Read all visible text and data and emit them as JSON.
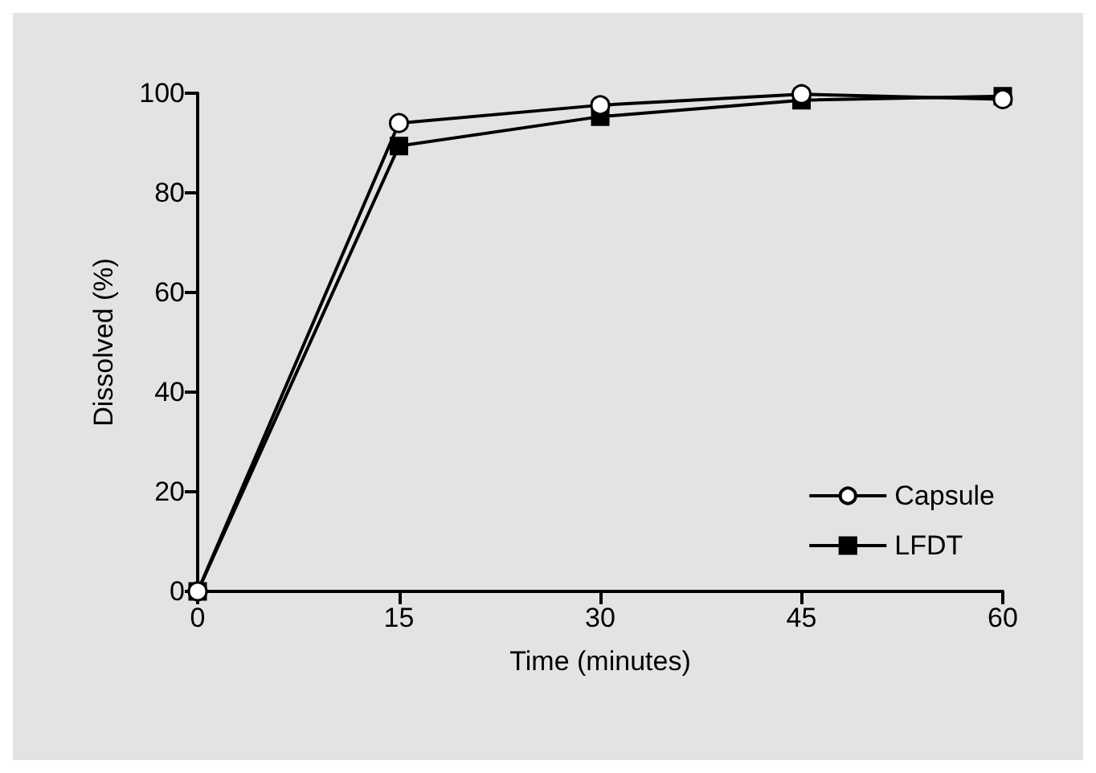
{
  "chart_data": {
    "type": "line",
    "xlabel": "Time (minutes)",
    "ylabel": "Dissolved (%)",
    "x": [
      0,
      15,
      30,
      45,
      60
    ],
    "series": [
      {
        "name": "Capsule",
        "color": "#000000",
        "marker": "circle",
        "values": [
          0,
          94,
          97.6,
          99.8,
          98.8
        ]
      },
      {
        "name": "LFDT",
        "color": "#000000",
        "marker": "square",
        "values": [
          0,
          89.4,
          95.3,
          98.6,
          99.4
        ]
      }
    ],
    "xlim": [
      0,
      60
    ],
    "xticks": [
      0,
      15,
      30,
      45,
      60
    ],
    "ylim": [
      0,
      100
    ],
    "yticks": [
      0,
      20,
      40,
      60,
      80,
      100
    ],
    "grid": false,
    "legend": "bottom right",
    "line_style": "solid"
  }
}
